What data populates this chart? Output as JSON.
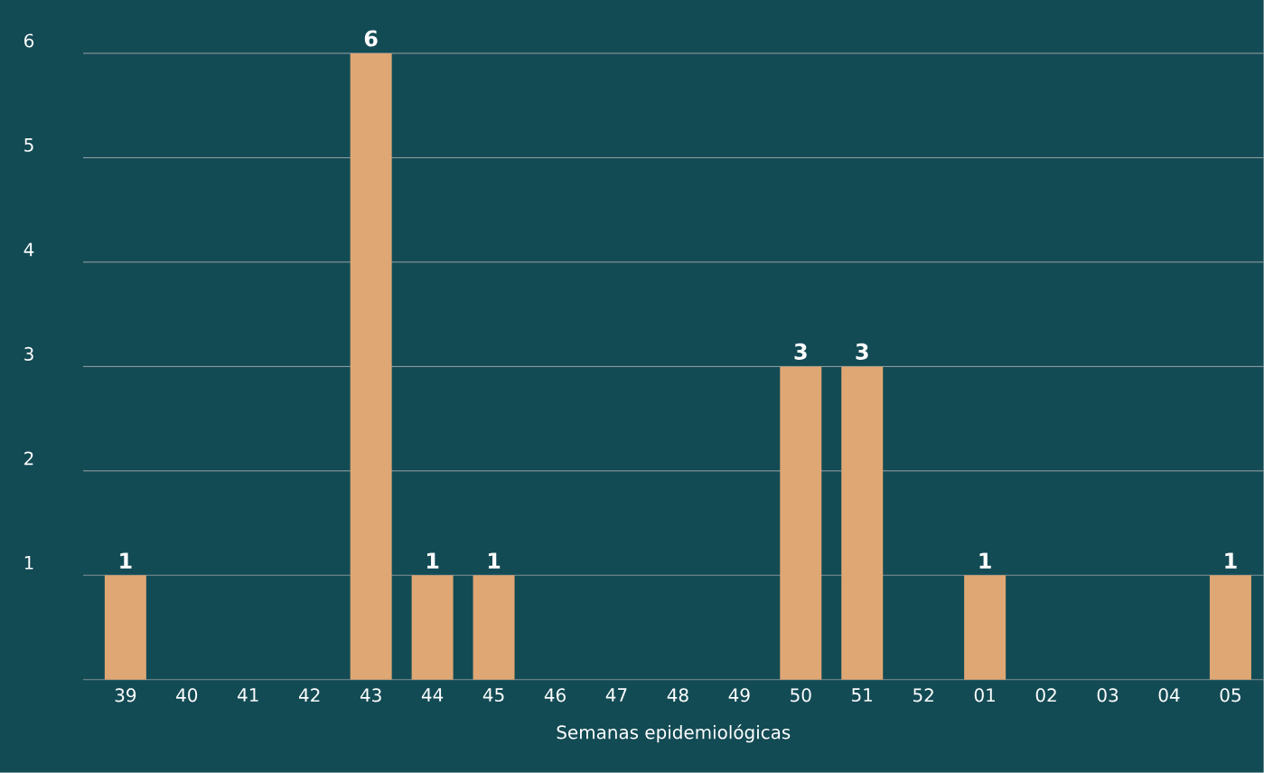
{
  "chart_data": {
    "type": "bar",
    "xlabel": "Semanas epidemiológicas",
    "categories": [
      "39",
      "40",
      "41",
      "42",
      "43",
      "44",
      "45",
      "46",
      "47",
      "48",
      "49",
      "50",
      "51",
      "52",
      "01",
      "02",
      "03",
      "04",
      "05"
    ],
    "values": [
      1,
      0,
      0,
      0,
      6,
      1,
      1,
      0,
      0,
      0,
      0,
      3,
      3,
      0,
      1,
      0,
      0,
      0,
      1
    ],
    "value_labels": [
      "1",
      null,
      null,
      null,
      "6",
      "1",
      "1",
      null,
      null,
      null,
      null,
      "3",
      "3",
      null,
      "1",
      null,
      null,
      null,
      "1"
    ],
    "color": "#dfa774",
    "ylim": [
      0,
      6
    ],
    "yticks": [
      1,
      2,
      3,
      4,
      5,
      6
    ],
    "grid": "y"
  }
}
